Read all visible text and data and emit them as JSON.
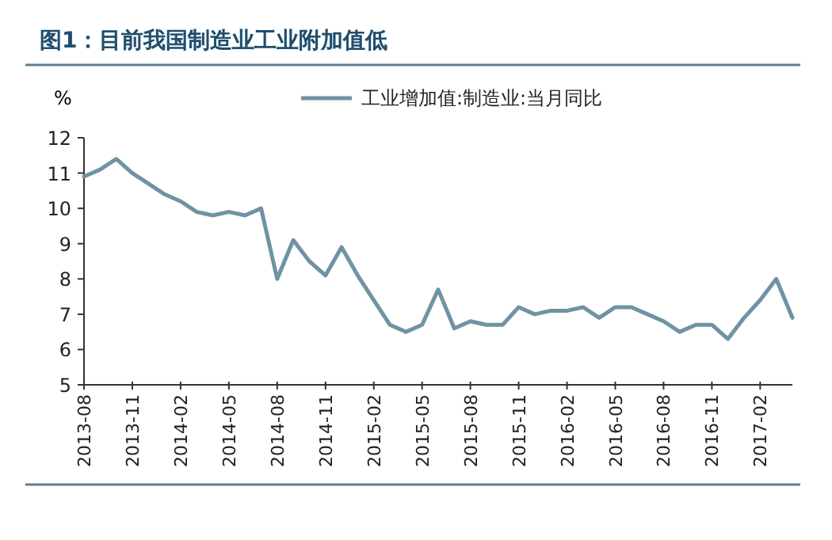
{
  "chart_data": {
    "type": "line",
    "title": "图1：目前我国制造业工业附加值低",
    "ylabel": "%",
    "x": [
      "2013-08",
      "2013-09",
      "2013-10",
      "2013-11",
      "2013-12",
      "2014-01",
      "2014-02",
      "2014-03",
      "2014-04",
      "2014-05",
      "2014-06",
      "2014-07",
      "2014-08",
      "2014-09",
      "2014-10",
      "2014-11",
      "2014-12",
      "2015-01",
      "2015-02",
      "2015-03",
      "2015-04",
      "2015-05",
      "2015-06",
      "2015-07",
      "2015-08",
      "2015-09",
      "2015-10",
      "2015-11",
      "2015-12",
      "2016-01",
      "2016-02",
      "2016-03",
      "2016-04",
      "2016-05",
      "2016-06",
      "2016-07",
      "2016-08",
      "2016-09",
      "2016-10",
      "2016-11",
      "2016-12",
      "2017-01",
      "2017-02",
      "2017-03",
      "2017-04"
    ],
    "series": [
      {
        "name": "工业增加值:制造业:当月同比",
        "color": "#6f93a3",
        "values": [
          10.9,
          11.1,
          11.4,
          11.0,
          10.7,
          10.4,
          10.2,
          9.9,
          9.8,
          9.9,
          9.8,
          10.0,
          8.0,
          9.1,
          8.5,
          8.1,
          8.9,
          8.1,
          7.4,
          6.7,
          6.5,
          6.7,
          7.7,
          6.6,
          6.8,
          6.7,
          6.7,
          7.2,
          7.0,
          7.1,
          7.1,
          7.2,
          6.9,
          7.2,
          7.2,
          7.0,
          6.8,
          6.5,
          6.7,
          6.7,
          6.3,
          6.9,
          7.4,
          8.0,
          6.9
        ]
      }
    ],
    "xlim": [
      "2013-08",
      "2017-04"
    ],
    "xticks": [
      "2013-08",
      "2013-11",
      "2014-02",
      "2014-05",
      "2014-08",
      "2014-11",
      "2015-02",
      "2015-05",
      "2015-08",
      "2015-11",
      "2016-02",
      "2016-05",
      "2016-08",
      "2016-11",
      "2017-02"
    ],
    "ylim": [
      5,
      12
    ],
    "yticks": [
      5,
      6,
      7,
      8,
      9,
      10,
      11,
      12
    ],
    "legend": "top",
    "grid": false
  }
}
